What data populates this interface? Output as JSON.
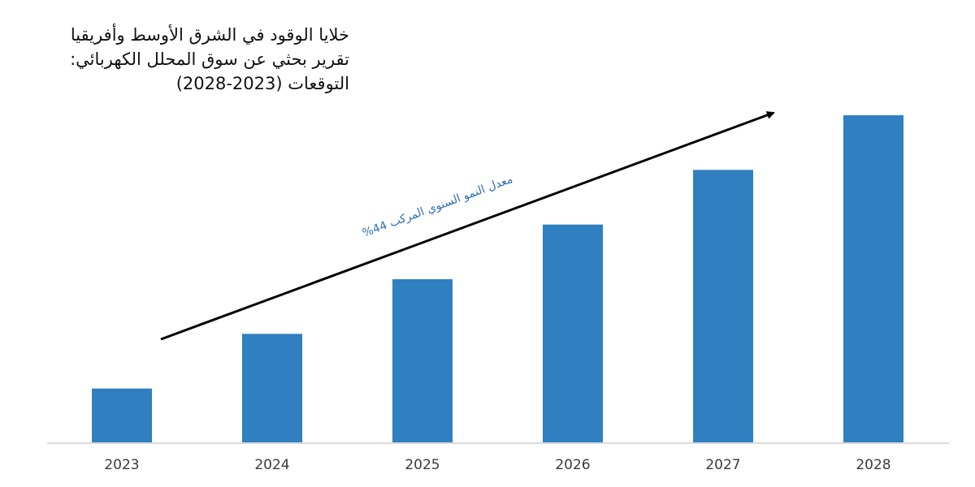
{
  "chart_data": {
    "type": "bar",
    "title": "خلايا الوقود في الشرق الأوسط وأفريقيا",
    "subtitle_line1": "تقرير بحثي عن سوق المحلل الكهربائي:",
    "subtitle_line2": "التوقعات (2023-2028)",
    "categories": [
      "2023",
      "2024",
      "2025",
      "2026",
      "2027",
      "2028"
    ],
    "values": [
      1,
      2,
      3,
      4,
      5,
      6
    ],
    "ylim": [
      0,
      6
    ],
    "xlabel": "",
    "ylabel": "",
    "grid": false,
    "legend": "none",
    "annotation": "معدل النمو السنوي المركب 44%",
    "colors": {
      "bar": "#2f7fc1",
      "arrow": "#000000",
      "annotation": "#2f6fb0",
      "axis": "#d9d9d9"
    }
  }
}
